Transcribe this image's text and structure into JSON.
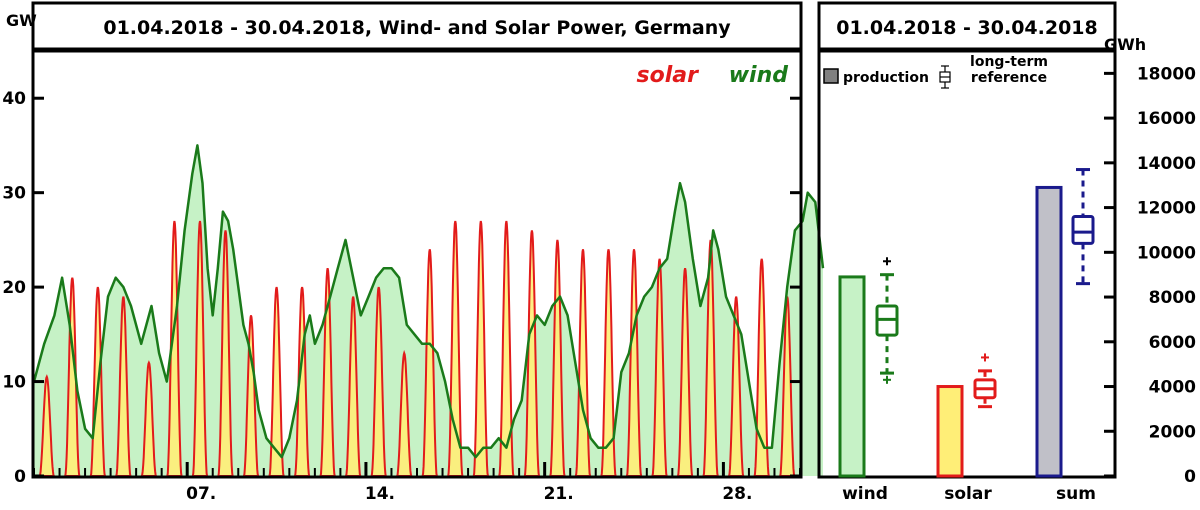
{
  "left_panel": {
    "title": "01.04.2018 - 30.04.2018, Wind- and Solar Power, Germany",
    "y_unit": "GW",
    "legend": {
      "solar": "solar",
      "wind": "wind"
    },
    "y_ticks": [
      "0",
      "10",
      "20",
      "30",
      "40"
    ],
    "x_ticks": [
      "07.",
      "14.",
      "21.",
      "28."
    ]
  },
  "right_panel": {
    "title": "01.04.2018 - 30.04.2018",
    "y_unit": "GWh",
    "legend": {
      "production": "production",
      "reference_line1": "long-term",
      "reference_line2": "reference"
    },
    "y_ticks": [
      "0",
      "2000",
      "4000",
      "6000",
      "8000",
      "10000",
      "12000",
      "14000",
      "16000",
      "18000"
    ],
    "categories": [
      "wind",
      "solar",
      "sum"
    ]
  },
  "colors": {
    "solar_line": "#e21b1b",
    "solar_fill": "#ffee77",
    "wind_line": "#1a7a1a",
    "wind_fill": "#c6f2c6",
    "sum_line": "#1a1a8c",
    "sum_fill": "#c0c0c8",
    "frame": "#000000"
  },
  "chart_data": [
    {
      "type": "area",
      "title": "01.04.2018 - 30.04.2018, Wind- and Solar Power, Germany",
      "ylabel": "GW",
      "xlim": [
        "2018-04-01",
        "2018-04-30 24:00"
      ],
      "ylim": [
        0,
        45
      ],
      "x_tick_labels": [
        "07.",
        "14.",
        "21.",
        "28."
      ],
      "series": [
        {
          "name": "wind",
          "x_unit": "day of April 2018 (decimal)",
          "points": [
            [
              1.0,
              10
            ],
            [
              1.4,
              14
            ],
            [
              1.8,
              17
            ],
            [
              2.1,
              21
            ],
            [
              2.4,
              16
            ],
            [
              2.7,
              9
            ],
            [
              3.0,
              5
            ],
            [
              3.3,
              4
            ],
            [
              3.6,
              12
            ],
            [
              3.9,
              19
            ],
            [
              4.2,
              21
            ],
            [
              4.5,
              20
            ],
            [
              4.8,
              18
            ],
            [
              5.2,
              14
            ],
            [
              5.6,
              18
            ],
            [
              5.9,
              13
            ],
            [
              6.2,
              10
            ],
            [
              6.6,
              18
            ],
            [
              6.9,
              26
            ],
            [
              7.2,
              32
            ],
            [
              7.4,
              35
            ],
            [
              7.6,
              31
            ],
            [
              7.8,
              22
            ],
            [
              8.0,
              17
            ],
            [
              8.2,
              22
            ],
            [
              8.4,
              28
            ],
            [
              8.6,
              27
            ],
            [
              8.8,
              24
            ],
            [
              9.0,
              20
            ],
            [
              9.2,
              16
            ],
            [
              9.4,
              14
            ],
            [
              9.6,
              11
            ],
            [
              9.8,
              7
            ],
            [
              10.1,
              4
            ],
            [
              10.4,
              3
            ],
            [
              10.7,
              2
            ],
            [
              11.0,
              4
            ],
            [
              11.3,
              8
            ],
            [
              11.6,
              15
            ],
            [
              11.8,
              17
            ],
            [
              12.0,
              14
            ],
            [
              12.3,
              16
            ],
            [
              12.6,
              19
            ],
            [
              12.9,
              22
            ],
            [
              13.2,
              25
            ],
            [
              13.5,
              21
            ],
            [
              13.8,
              17
            ],
            [
              14.1,
              19
            ],
            [
              14.4,
              21
            ],
            [
              14.7,
              22
            ],
            [
              15.0,
              22
            ],
            [
              15.3,
              21
            ],
            [
              15.6,
              16
            ],
            [
              15.9,
              15
            ],
            [
              16.2,
              14
            ],
            [
              16.5,
              14
            ],
            [
              16.8,
              13
            ],
            [
              17.1,
              10
            ],
            [
              17.4,
              6
            ],
            [
              17.7,
              3
            ],
            [
              18.0,
              3
            ],
            [
              18.3,
              2
            ],
            [
              18.6,
              3
            ],
            [
              18.9,
              3
            ],
            [
              19.2,
              4
            ],
            [
              19.5,
              3
            ],
            [
              19.8,
              6
            ],
            [
              20.1,
              8
            ],
            [
              20.4,
              15
            ],
            [
              20.7,
              17
            ],
            [
              21.0,
              16
            ],
            [
              21.3,
              18
            ],
            [
              21.6,
              19
            ],
            [
              21.9,
              17
            ],
            [
              22.2,
              12
            ],
            [
              22.5,
              7
            ],
            [
              22.8,
              4
            ],
            [
              23.1,
              3
            ],
            [
              23.4,
              3
            ],
            [
              23.7,
              4
            ],
            [
              24.0,
              11
            ],
            [
              24.3,
              13
            ],
            [
              24.6,
              17
            ],
            [
              24.9,
              19
            ],
            [
              25.2,
              20
            ],
            [
              25.5,
              22
            ],
            [
              25.8,
              23
            ],
            [
              26.1,
              28
            ],
            [
              26.3,
              31
            ],
            [
              26.5,
              29
            ],
            [
              26.8,
              23
            ],
            [
              27.1,
              18
            ],
            [
              27.4,
              21
            ],
            [
              27.6,
              26
            ],
            [
              27.8,
              24
            ],
            [
              28.1,
              19
            ],
            [
              28.4,
              17
            ],
            [
              28.7,
              15
            ],
            [
              29.0,
              10
            ],
            [
              29.3,
              5
            ],
            [
              29.6,
              3
            ],
            [
              29.9,
              3
            ],
            [
              30.2,
              12
            ],
            [
              30.5,
              20
            ],
            [
              30.8,
              26
            ],
            [
              31.1,
              27
            ],
            [
              31.3,
              30
            ],
            [
              31.6,
              29
            ],
            [
              31.9,
              22
            ]
          ]
        },
        {
          "name": "solar",
          "x_unit": "day of April 2018",
          "daily_peaks": [
            10.5,
            21,
            20,
            19,
            12,
            27,
            27,
            26,
            17,
            20,
            20,
            22,
            19,
            20,
            13,
            24,
            27,
            27,
            27,
            26,
            25,
            24,
            24,
            24,
            23,
            22,
            25,
            19,
            23,
            19
          ]
        }
      ]
    },
    {
      "type": "bar",
      "title": "01.04.2018 - 30.04.2018",
      "ylabel": "GWh",
      "ylim": [
        0,
        18000
      ],
      "categories": [
        "wind",
        "solar",
        "sum"
      ],
      "production": [
        8900,
        4000,
        12900
      ],
      "long_term_reference": [
        {
          "category": "wind",
          "whisker_low": 4600,
          "q1": 6300,
          "median": 7000,
          "q3": 7600,
          "whisker_high": 9000,
          "outliers": [
            4300,
            9600
          ]
        },
        {
          "category": "solar",
          "whisker_low": 3100,
          "q1": 3500,
          "median": 3900,
          "q3": 4300,
          "whisker_high": 4700,
          "outliers": [
            5300
          ]
        },
        {
          "category": "sum",
          "whisker_low": 8600,
          "q1": 10400,
          "median": 10900,
          "q3": 11600,
          "whisker_high": 13700,
          "outliers": []
        }
      ]
    }
  ]
}
